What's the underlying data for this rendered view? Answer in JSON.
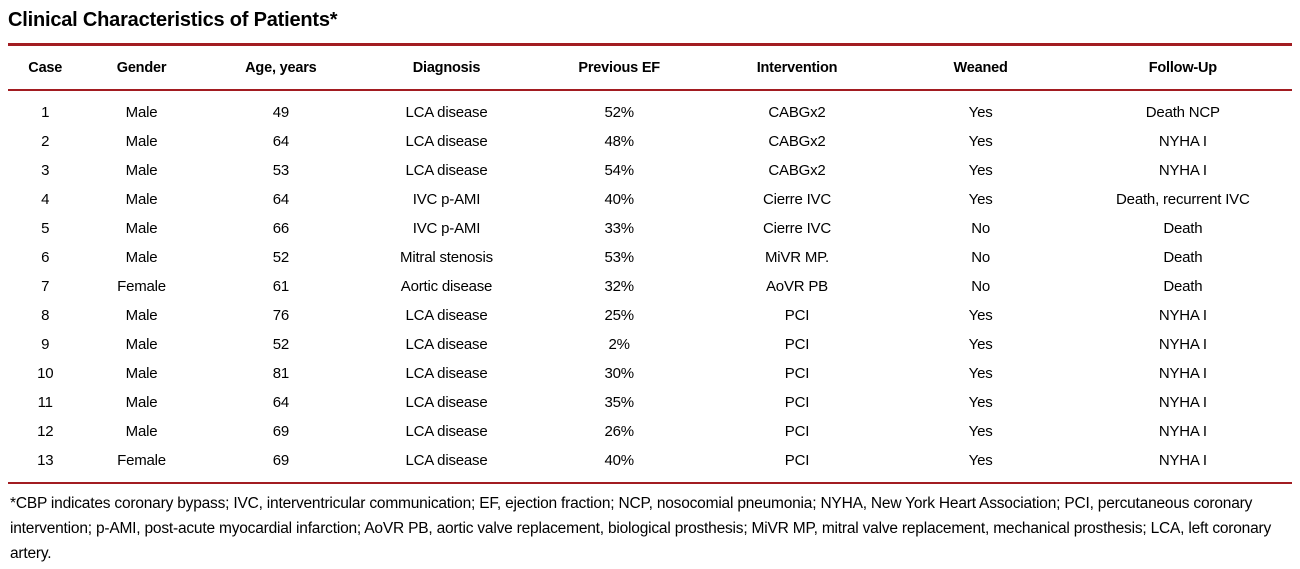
{
  "accent_color": "#a21c21",
  "title": "Clinical Characteristics of Patients*",
  "table": {
    "columns": [
      "Case",
      "Gender",
      "Age, years",
      "Diagnosis",
      "Previous EF",
      "Intervention",
      "Weaned",
      "Follow-Up"
    ],
    "col_widths_pct": [
      5.8,
      9.2,
      12.5,
      13.3,
      13.6,
      14.1,
      14.5,
      17.0
    ],
    "rows": [
      [
        "1",
        "Male",
        "49",
        "LCA disease",
        "52%",
        "CABGx2",
        "Yes",
        "Death NCP"
      ],
      [
        "2",
        "Male",
        "64",
        "LCA disease",
        "48%",
        "CABGx2",
        "Yes",
        "NYHA I"
      ],
      [
        "3",
        "Male",
        "53",
        "LCA disease",
        "54%",
        "CABGx2",
        "Yes",
        "NYHA I"
      ],
      [
        "4",
        "Male",
        "64",
        "IVC p-AMI",
        "40%",
        "Cierre IVC",
        "Yes",
        "Death, recurrent IVC"
      ],
      [
        "5",
        "Male",
        "66",
        "IVC p-AMI",
        "33%",
        "Cierre IVC",
        "No",
        "Death"
      ],
      [
        "6",
        "Male",
        "52",
        "Mitral stenosis",
        "53%",
        "MiVR MP.",
        "No",
        "Death"
      ],
      [
        "7",
        "Female",
        "61",
        "Aortic disease",
        "32%",
        "AoVR PB",
        "No",
        "Death"
      ],
      [
        "8",
        "Male",
        "76",
        "LCA disease",
        "25%",
        "PCI",
        "Yes",
        "NYHA I"
      ],
      [
        "9",
        "Male",
        "52",
        "LCA disease",
        "2%",
        "PCI",
        "Yes",
        "NYHA I"
      ],
      [
        "10",
        "Male",
        "81",
        "LCA disease",
        "30%",
        "PCI",
        "Yes",
        "NYHA I"
      ],
      [
        "11",
        "Male",
        "64",
        "LCA disease",
        "35%",
        "PCI",
        "Yes",
        "NYHA I"
      ],
      [
        "12",
        "Male",
        "69",
        "LCA disease",
        "26%",
        "PCI",
        "Yes",
        "NYHA I"
      ],
      [
        "13",
        "Female",
        "69",
        "LCA disease",
        "40%",
        "PCI",
        "Yes",
        "NYHA I"
      ]
    ]
  },
  "footnote": "*CBP indicates coronary bypass; IVC, interventricular communication; EF, ejection fraction; NCP, nosocomial pneumonia; NYHA, New York Heart Association; PCI, percutaneous coronary intervention; p-AMI, post-acute myocardial infarction; AoVR PB, aortic valve replacement, biological prosthesis; MiVR MP, mitral valve replacement, mechanical prosthesis; LCA, left coronary artery."
}
